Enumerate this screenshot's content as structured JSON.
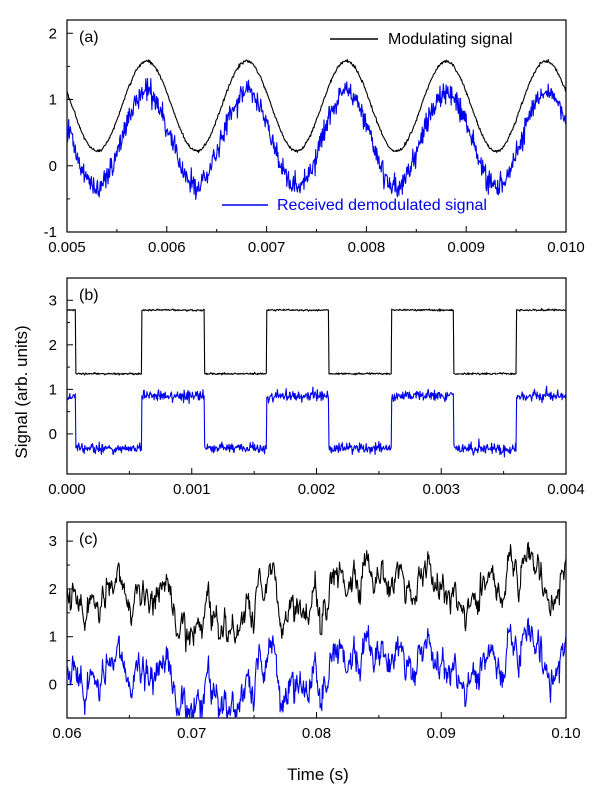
{
  "figure": {
    "ylabel": "Signal (arb. units)",
    "xlabel": "Time (s)"
  },
  "chart_data": [
    {
      "type": "line",
      "panel": "a",
      "tag": "(a)",
      "xlim": [
        0.005,
        0.01
      ],
      "ylim": [
        -1,
        2.2
      ],
      "xticks": [
        "0.005",
        "0.006",
        "0.007",
        "0.008",
        "0.009",
        "0.010"
      ],
      "xtick_values": [
        0.005,
        0.006,
        0.007,
        0.008,
        0.009,
        0.01
      ],
      "yticks": [
        "-1",
        "0",
        "1",
        "2"
      ],
      "ytick_values": [
        -1,
        0,
        1,
        2
      ],
      "series": [
        {
          "name": "Modulating signal",
          "color": "#000000",
          "kind": "sine",
          "offset": 0.9,
          "amplitude": 0.68,
          "frequency": 1000,
          "peak_x": 0.0058,
          "noise": 0.012,
          "legend": "top-right"
        },
        {
          "name": "Received demodulated signal",
          "color": "#0000ee",
          "kind": "sine",
          "offset": 0.4,
          "amplitude": 0.72,
          "frequency": 1000,
          "peak_x": 0.0058,
          "noise": 0.09,
          "legend": "bottom-right"
        }
      ]
    },
    {
      "type": "line",
      "panel": "b",
      "tag": "(b)",
      "xlim": [
        0.0,
        0.004
      ],
      "ylim": [
        -0.9,
        3.5
      ],
      "xticks": [
        "0.000",
        "0.001",
        "0.002",
        "0.003",
        "0.004"
      ],
      "xtick_values": [
        0.0,
        0.001,
        0.002,
        0.003,
        0.004
      ],
      "yticks": [
        "0",
        "1",
        "2",
        "3"
      ],
      "ytick_values": [
        0,
        1,
        2,
        3
      ],
      "series": [
        {
          "name": "Modulating signal",
          "color": "#000000",
          "kind": "square",
          "high": 2.78,
          "low": 1.35,
          "high_intervals": [
            [
              0.0,
              7e-05
            ],
            [
              0.0006,
              0.0011
            ],
            [
              0.0016,
              0.0021
            ],
            [
              0.0026,
              0.0031
            ],
            [
              0.0036,
              0.004
            ]
          ],
          "noise": 0.01
        },
        {
          "name": "Received demodulated signal",
          "color": "#0000ee",
          "kind": "square",
          "high": 0.85,
          "low": -0.32,
          "high_intervals": [
            [
              0.0,
              7e-05
            ],
            [
              0.0006,
              0.0011
            ],
            [
              0.0016,
              0.0021
            ],
            [
              0.0026,
              0.0031
            ],
            [
              0.0036,
              0.004
            ]
          ],
          "noise": 0.06
        }
      ]
    },
    {
      "type": "line",
      "panel": "c",
      "tag": "(c)",
      "xlim": [
        0.06,
        0.1
      ],
      "ylim": [
        -0.7,
        3.4
      ],
      "xticks": [
        "0.06",
        "0.07",
        "0.08",
        "0.09",
        "0.10"
      ],
      "xtick_values": [
        0.06,
        0.07,
        0.08,
        0.09,
        0.1
      ],
      "yticks": [
        "0",
        "1",
        "2",
        "3"
      ],
      "ytick_values": [
        0,
        1,
        2,
        3
      ],
      "series": [
        {
          "name": "Modulating signal",
          "color": "#000000",
          "kind": "random",
          "offset": 2.0,
          "noise": 0.03
        },
        {
          "name": "Received demodulated signal",
          "color": "#0000ee",
          "kind": "random",
          "offset": 0.4,
          "noise": 0.07
        }
      ]
    }
  ]
}
